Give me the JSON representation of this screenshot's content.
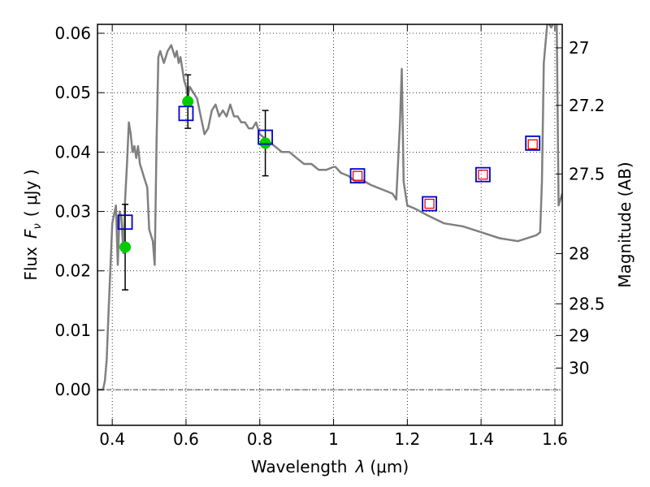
{
  "chart_data": {
    "type": "line",
    "xlabel": "Wavelength",
    "xlabel_symbol": "λ",
    "xlabel_unit": "(μm)",
    "ylabel": "Flux",
    "ylabel_symbol": "F",
    "ylabel_subscript": "ν",
    "ylabel_unit": "( μJy )",
    "y2label": "Magnitude (AB)",
    "xlim": [
      0.36,
      1.62
    ],
    "ylim": [
      -0.006,
      0.0615
    ],
    "grid": true,
    "xticks": [
      0.4,
      0.6,
      0.8,
      1.0,
      1.2,
      1.4,
      1.6
    ],
    "xtick_labels": [
      "0.4",
      "0.6",
      "0.8",
      "1",
      "1.2",
      "1.4",
      "1.6"
    ],
    "yticks": [
      0.0,
      0.01,
      0.02,
      0.03,
      0.04,
      0.05,
      0.06
    ],
    "ytick_labels": [
      "0.00",
      "0.01",
      "0.02",
      "0.03",
      "0.04",
      "0.05",
      "0.06"
    ],
    "y2ticks": [
      {
        "label": "27",
        "mag": 27
      },
      {
        "label": "27.2",
        "mag": 27.2
      },
      {
        "label": "27.5",
        "mag": 27.5
      },
      {
        "label": "28",
        "mag": 28
      },
      {
        "label": "28.5",
        "mag": 28.5
      },
      {
        "label": "29",
        "mag": 29
      },
      {
        "label": "30",
        "mag": 30
      }
    ],
    "series": [
      {
        "kind": "line",
        "color": "#808080",
        "x": [
          0.36,
          0.375,
          0.38,
          0.385,
          0.39,
          0.4,
          0.41,
          0.415,
          0.42,
          0.425,
          0.43,
          0.435,
          0.44,
          0.445,
          0.45,
          0.455,
          0.46,
          0.465,
          0.47,
          0.475,
          0.48,
          0.485,
          0.49,
          0.495,
          0.5,
          0.505,
          0.51,
          0.515,
          0.52,
          0.525,
          0.53,
          0.54,
          0.55,
          0.56,
          0.57,
          0.575,
          0.58,
          0.585,
          0.59,
          0.595,
          0.6,
          0.605,
          0.61,
          0.62,
          0.63,
          0.64,
          0.65,
          0.66,
          0.67,
          0.68,
          0.69,
          0.7,
          0.71,
          0.72,
          0.73,
          0.74,
          0.75,
          0.76,
          0.77,
          0.78,
          0.79,
          0.8,
          0.82,
          0.84,
          0.86,
          0.88,
          0.9,
          0.92,
          0.94,
          0.96,
          0.98,
          1.0,
          1.005,
          1.02,
          1.04,
          1.06,
          1.08,
          1.1,
          1.12,
          1.14,
          1.16,
          1.17,
          1.18,
          1.185,
          1.19,
          1.2,
          1.22,
          1.25,
          1.3,
          1.35,
          1.4,
          1.45,
          1.5,
          1.55,
          1.56,
          1.565,
          1.57,
          1.58,
          1.59,
          1.6,
          1.605,
          1.61,
          1.615,
          1.62
        ],
        "y": [
          0.0,
          0.0,
          0.0015,
          0.005,
          0.013,
          0.028,
          0.031,
          0.021,
          0.03,
          0.029,
          0.023,
          0.032,
          0.038,
          0.045,
          0.043,
          0.04,
          0.041,
          0.039,
          0.041,
          0.038,
          0.037,
          0.036,
          0.035,
          0.034,
          0.027,
          0.026,
          0.025,
          0.021,
          0.041,
          0.056,
          0.057,
          0.055,
          0.057,
          0.058,
          0.056,
          0.057,
          0.055,
          0.056,
          0.054,
          0.052,
          0.051,
          0.049,
          0.051,
          0.05,
          0.049,
          0.046,
          0.043,
          0.044,
          0.047,
          0.048,
          0.046,
          0.047,
          0.046,
          0.048,
          0.046,
          0.046,
          0.045,
          0.045,
          0.044,
          0.044,
          0.045,
          0.043,
          0.042,
          0.041,
          0.04,
          0.04,
          0.039,
          0.038,
          0.038,
          0.037,
          0.037,
          0.0375,
          0.0375,
          0.0365,
          0.036,
          0.035,
          0.0352,
          0.0345,
          0.034,
          0.0335,
          0.033,
          0.032,
          0.045,
          0.054,
          0.035,
          0.031,
          0.0305,
          0.0295,
          0.028,
          0.0275,
          0.0265,
          0.0255,
          0.025,
          0.026,
          0.0265,
          0.035,
          0.055,
          0.062,
          0.061,
          0.062,
          0.062,
          0.031,
          0.032,
          0.033
        ]
      },
      {
        "kind": "markers",
        "name": "observed",
        "marker": "circle",
        "color": "#00cc00",
        "x": [
          0.435,
          0.605,
          0.815
        ],
        "y": [
          0.024,
          0.0485,
          0.0415
        ],
        "yerr": [
          0.0072,
          0.0045,
          0.0055
        ]
      },
      {
        "kind": "markers",
        "name": "model-blue",
        "marker": "square",
        "color": "#0000cc",
        "x": [
          0.435,
          0.6,
          0.815,
          1.065,
          1.26,
          1.405,
          1.54
        ],
        "y": [
          0.0282,
          0.0465,
          0.0425,
          0.036,
          0.0313,
          0.0362,
          0.0415
        ]
      },
      {
        "kind": "markers",
        "name": "model-red",
        "marker": "square",
        "color": "#ee0000",
        "x": [
          1.065,
          1.26,
          1.405,
          1.54
        ],
        "y": [
          0.036,
          0.0313,
          0.0362,
          0.0413
        ]
      }
    ]
  }
}
